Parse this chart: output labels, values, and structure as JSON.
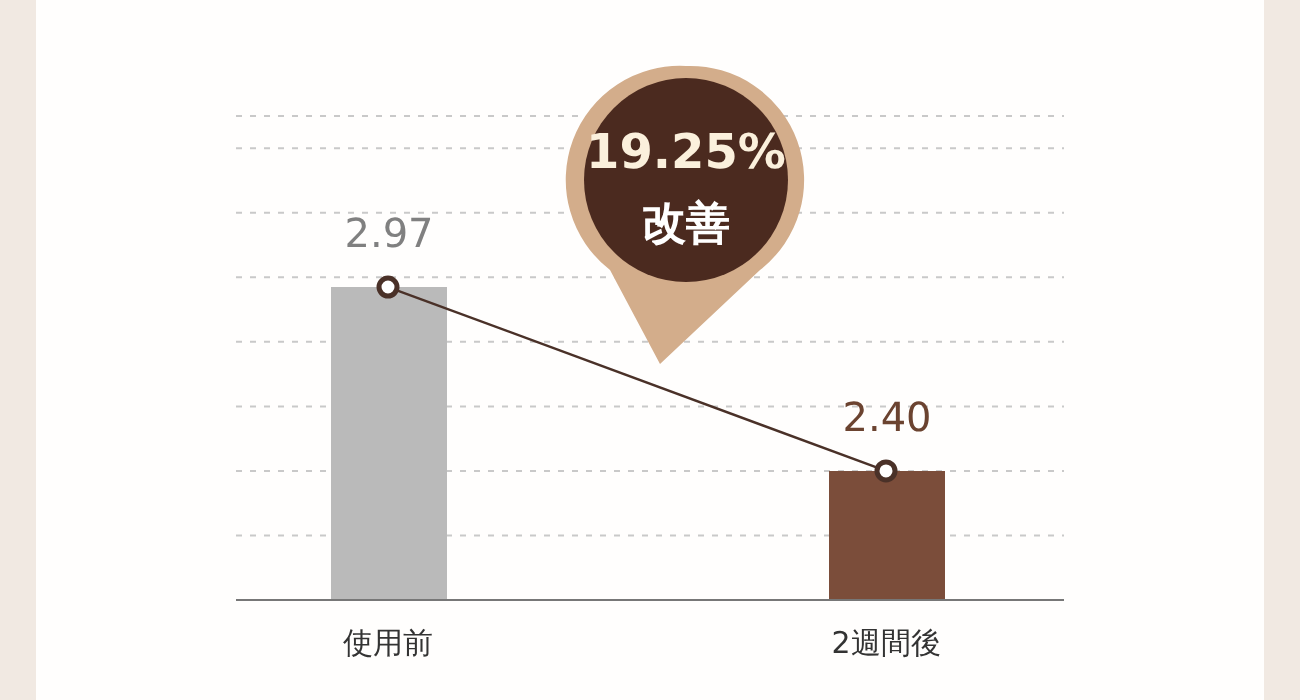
{
  "chart_data": {
    "type": "bar",
    "categories": [
      "使用前",
      "2週間後"
    ],
    "series": [
      {
        "values": [
          2.97,
          2.4
        ],
        "colors": [
          "#bababa",
          "#7b4d3a"
        ],
        "value_labels": [
          "2.97",
          "2.40"
        ]
      },
      {
        "type": "line",
        "values": [
          2.97,
          2.4
        ],
        "color": "#4a3128",
        "marker": "circle"
      }
    ],
    "ylim": [
      2,
      3.5
    ],
    "tick_labels": "x",
    "grid": "y",
    "annotations": [
      "19.25% 改善"
    ]
  }
}
